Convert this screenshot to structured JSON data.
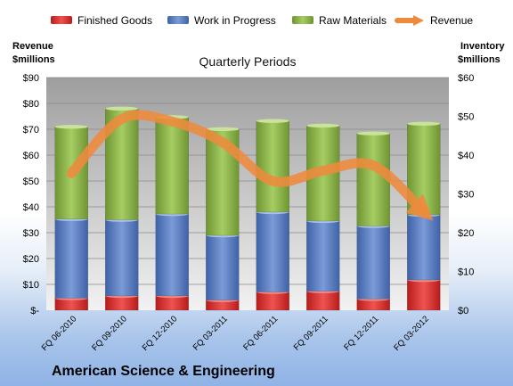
{
  "chart_data": {
    "type": "bar",
    "subtitle": "Quarterly Periods",
    "footer_title": "American Science & Engineering",
    "left_axis_label_lines": [
      "Revenue",
      "$millions"
    ],
    "right_axis_label_lines": [
      "Inventory",
      "$millions"
    ],
    "categories": [
      "FQ 06-2010",
      "FQ 09-2010",
      "FQ 12-2010",
      "FQ 03-2011",
      "FQ 06-2011",
      "FQ 09-2011",
      "FQ 12-2011",
      "FQ 03-2012"
    ],
    "left_axis": {
      "ylim": [
        0,
        90
      ],
      "ticks": [
        0,
        10,
        20,
        30,
        40,
        50,
        60,
        70,
        80,
        90
      ],
      "tick_labels": [
        "$-",
        "$10",
        "$20",
        "$30",
        "$40",
        "$50",
        "$60",
        "$70",
        "$80",
        "$90"
      ]
    },
    "right_axis": {
      "ylim": [
        0,
        60
      ],
      "ticks": [
        0,
        10,
        20,
        30,
        40,
        50,
        60
      ],
      "tick_labels": [
        "$0",
        "$10",
        "$20",
        "$30",
        "$40",
        "$50",
        "$60"
      ]
    },
    "grid": true,
    "legend_position": "top",
    "series": [
      {
        "name": "Finished Goods",
        "kind": "stacked-bar",
        "axis": "right",
        "color": "#d32f2f",
        "values": [
          3.1,
          3.7,
          3.7,
          2.6,
          4.7,
          4.9,
          2.9,
          7.8
        ]
      },
      {
        "name": "Work in Progress",
        "kind": "stacked-bar",
        "axis": "right",
        "color": "#5a7fc2",
        "values": [
          20.4,
          19.6,
          21.1,
          16.7,
          20.6,
          18.1,
          18.8,
          16.8
        ]
      },
      {
        "name": "Raw Materials",
        "kind": "stacked-bar",
        "axis": "right",
        "color": "#8cb349",
        "values": [
          23.8,
          28.7,
          25.0,
          27.4,
          23.5,
          24.6,
          23.9,
          23.5
        ]
      },
      {
        "name": "Revenue",
        "kind": "line",
        "axis": "left",
        "color": "#ee8a3c",
        "values": [
          53,
          74,
          73,
          65,
          50,
          54,
          56,
          38
        ]
      }
    ]
  }
}
